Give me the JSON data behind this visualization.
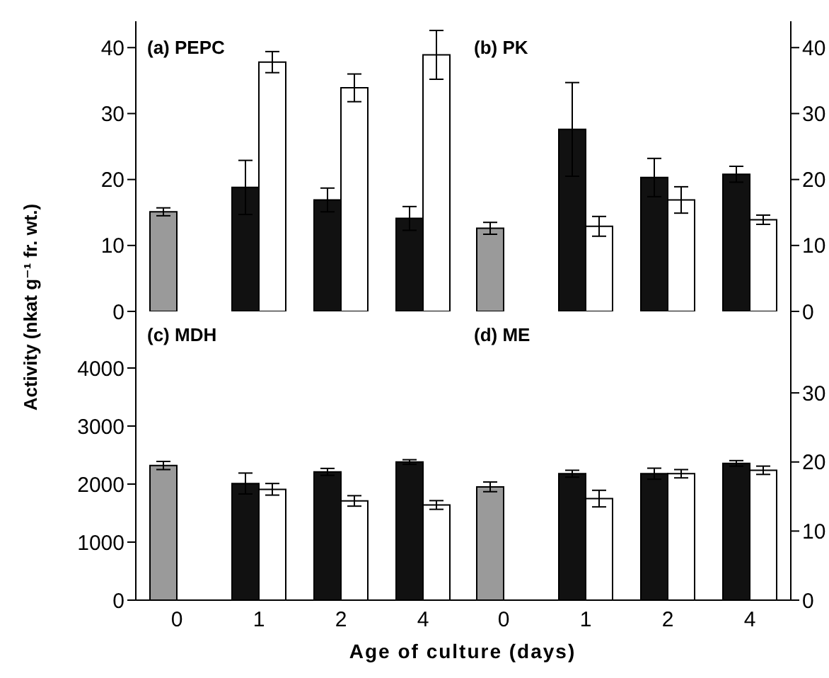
{
  "chart_data": [
    {
      "type": "bar",
      "title": "(a) PEPC",
      "ylabel": "Activity (nkat g⁻¹ fr. wt.)",
      "categories": [
        "0",
        "1",
        "2",
        "4"
      ],
      "series": [
        {
          "color": "#9a9a9a",
          "values": [
            15.1,
            null,
            null,
            null
          ],
          "errors": [
            0.6,
            null,
            null,
            null
          ]
        },
        {
          "color": "#111111",
          "values": [
            null,
            18.8,
            16.9,
            14.1
          ],
          "errors": [
            null,
            4.1,
            1.8,
            1.8
          ]
        },
        {
          "color": "#ffffff",
          "values": [
            null,
            37.8,
            33.9,
            38.9
          ],
          "errors": [
            null,
            1.6,
            2.1,
            3.7
          ]
        }
      ],
      "ylim": [
        0,
        44
      ],
      "yticks": [
        0,
        10,
        20,
        30,
        40
      ],
      "tick_labels": "y"
    },
    {
      "type": "bar",
      "title": "(b) PK",
      "categories": [
        "0",
        "1",
        "2",
        "4"
      ],
      "series": [
        {
          "color": "#9a9a9a",
          "values": [
            12.6,
            null,
            null,
            null
          ],
          "errors": [
            0.9,
            null,
            null,
            null
          ]
        },
        {
          "color": "#111111",
          "values": [
            null,
            27.6,
            20.3,
            20.8
          ],
          "errors": [
            null,
            7.1,
            2.9,
            1.2
          ]
        },
        {
          "color": "#ffffff",
          "values": [
            null,
            12.9,
            16.9,
            13.9
          ],
          "errors": [
            null,
            1.5,
            2.0,
            0.7
          ]
        }
      ],
      "ylim": [
        0,
        44
      ],
      "yticks": [
        0,
        10,
        20,
        30,
        40
      ],
      "tick_labels": "y"
    },
    {
      "type": "bar",
      "title": "(c) MDH",
      "xlabel": "Age of culture (days)",
      "categories": [
        "0",
        "1",
        "2",
        "4"
      ],
      "series": [
        {
          "color": "#9a9a9a",
          "values": [
            2320,
            null,
            null,
            null
          ],
          "errors": [
            70,
            null,
            null,
            null
          ]
        },
        {
          "color": "#111111",
          "values": [
            null,
            2010,
            2210,
            2380
          ],
          "errors": [
            null,
            180,
            60,
            40
          ]
        },
        {
          "color": "#ffffff",
          "values": [
            null,
            1910,
            1710,
            1640
          ],
          "errors": [
            null,
            100,
            90,
            75
          ]
        }
      ],
      "ylim": [
        0,
        5000
      ],
      "yticks": [
        0,
        1000,
        2000,
        3000,
        4000
      ]
    },
    {
      "type": "bar",
      "title": "(d) ME",
      "categories": [
        "0",
        "1",
        "2",
        "4"
      ],
      "series": [
        {
          "color": "#9a9a9a",
          "values": [
            16.4,
            null,
            null,
            null
          ],
          "errors": [
            0.7,
            null,
            null,
            null
          ]
        },
        {
          "color": "#111111",
          "values": [
            null,
            18.3,
            18.3,
            19.8
          ],
          "errors": [
            null,
            0.5,
            0.8,
            0.4
          ]
        },
        {
          "color": "#ffffff",
          "values": [
            null,
            14.7,
            18.3,
            18.8
          ],
          "errors": [
            null,
            1.2,
            0.6,
            0.6
          ]
        }
      ],
      "ylim": [
        0,
        42
      ],
      "yticks": [
        0,
        10,
        20,
        30
      ]
    }
  ]
}
